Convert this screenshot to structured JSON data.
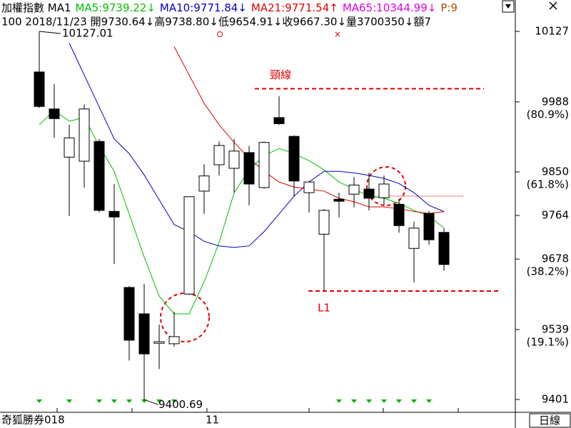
{
  "chart_data": {
    "type": "candlestick",
    "index_name": "加權指數 MA1",
    "series": [
      {
        "name": "MA5:9739.22↓",
        "color": "#00c000",
        "values": [
          9943,
          9971,
          9950,
          9957,
          9901,
          9851,
          9767,
          9682,
          9605,
          9570,
          9570,
          9633,
          9711,
          9809,
          9854,
          9882,
          9896,
          9886,
          9872,
          9854,
          9830,
          9816,
          9802,
          9798,
          9788,
          9774,
          9763,
          9739.22
        ]
      },
      {
        "name": "MA10:9771.84↓",
        "color": "#0000c0",
        "values": [
          null,
          null,
          10104,
          10041,
          9978,
          9915,
          9886,
          9844,
          9795,
          9746,
          9732,
          9713,
          9704,
          9701,
          9704,
          9732,
          9767,
          9802,
          9830,
          9851,
          9851,
          9848,
          9843,
          9837,
          9827,
          9809,
          9784,
          9771.84
        ]
      },
      {
        "name": "MA21:9771.54↑",
        "color": "#e00000",
        "values": [
          null,
          null,
          null,
          null,
          null,
          null,
          null,
          null,
          null,
          10097,
          10041,
          9985,
          9943,
          9908,
          9877,
          9851,
          9830,
          9820,
          9816,
          9812,
          9798,
          9791,
          9781,
          9781,
          9777,
          9772,
          9768,
          9771.54
        ]
      }
    ],
    "extra_legend": [
      {
        "text": "MA65:10344.99↓",
        "color": "#e000e0"
      },
      {
        "text": "P:9",
        "color": "#b05000"
      }
    ],
    "quote_line": "100 2018/11/23 開9730.64↓高9738.80↓低9654.91↓收9667.30↓量3700350↓額7",
    "categories": [
      null,
      null,
      null,
      null,
      null,
      null,
      null,
      null,
      null,
      null,
      null,
      "11",
      null,
      null,
      null,
      null,
      null,
      null,
      null,
      null,
      null,
      null,
      null,
      null,
      null,
      null,
      null,
      null
    ],
    "open": [
      10047,
      9974,
      9879,
      9871,
      9910,
      9772,
      9622,
      9570,
      9512,
      9511,
      9609,
      9812,
      9864,
      9857,
      9888,
      9819,
      9957,
      9920,
      9809,
      9727,
      9796,
      9806,
      9816,
      9799,
      9786,
      9699,
      9768,
      9730.64
    ],
    "high": [
      10127.01,
      10023,
      9943,
      9983,
      9915,
      9826,
      9625,
      9629,
      9549,
      9574,
      9801,
      9865,
      9910,
      9915,
      9901,
      9910,
      9999,
      9922,
      9832,
      9777,
      9809,
      9840,
      9848,
      9843,
      9797,
      9752,
      9773,
      9738.8
    ],
    "low": [
      9976,
      9917,
      9763,
      9819,
      9770,
      9668,
      9478,
      9400.69,
      9461,
      9505,
      9607,
      9767,
      9843,
      9809,
      9784,
      9817,
      9943,
      9801,
      9770,
      9615,
      9760,
      9780,
      9774,
      9784,
      9730,
      9632,
      9706,
      9654.91
    ],
    "close": [
      9979,
      9955,
      9917,
      9974,
      9774,
      9761,
      9518,
      9491,
      9515,
      9525,
      9801,
      9842,
      9902,
      9891,
      9826,
      9908,
      9945,
      9832,
      9830,
      9774,
      9792,
      9824,
      9798,
      9826,
      9744,
      9739,
      9716,
      9667.3
    ],
    "up_color": "#ffffff",
    "down_color": "#000000",
    "ylim": [
      9380,
      10158
    ],
    "yticks": [
      10127,
      9988,
      9850,
      9764,
      9678,
      9539,
      9401
    ],
    "ytick_notes": [
      {
        "value": 9988,
        "label": "(80.9%)"
      },
      {
        "value": 9850,
        "label": "(61.8%)"
      },
      {
        "value": 9678,
        "label": "(38.2%)"
      },
      {
        "value": 9539,
        "label": "(19.1%)"
      }
    ],
    "levels": [
      {
        "label": "頸線",
        "value": 10014,
        "color": "#e00000"
      },
      {
        "label": "L1",
        "value": 9615,
        "color": "#e00000"
      },
      {
        "value": 9802,
        "color": "#e00000"
      }
    ],
    "footer_left": "奇狐勝券018",
    "period": "日線"
  }
}
